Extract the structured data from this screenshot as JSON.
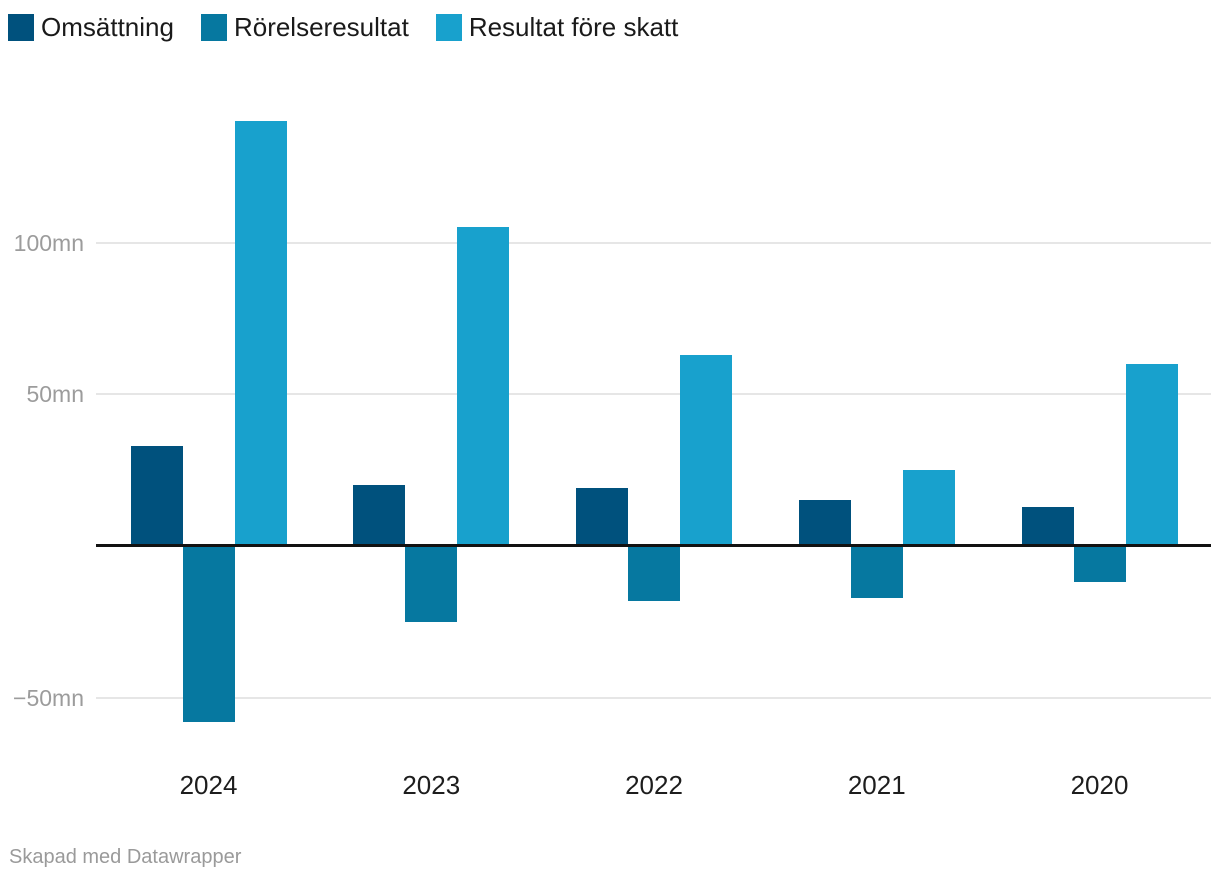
{
  "legend": {
    "items": [
      {
        "label": "Omsättning",
        "color": "#00517d"
      },
      {
        "label": "Rörelseresultat",
        "color": "#0678a0"
      },
      {
        "label": "Resultat före skatt",
        "color": "#18a1cd"
      }
    ]
  },
  "chart_data": {
    "type": "bar",
    "categories": [
      "2024",
      "2023",
      "2022",
      "2021",
      "2020"
    ],
    "series": [
      {
        "name": "Omsättning",
        "color": "#00517d",
        "values": [
          33,
          20,
          19,
          15,
          13
        ]
      },
      {
        "name": "Rörelseresultat",
        "color": "#0678a0",
        "values": [
          -58,
          -25,
          -18,
          -17,
          -12
        ]
      },
      {
        "name": "Resultat före skatt",
        "color": "#18a1cd",
        "values": [
          140,
          105,
          63,
          25,
          60
        ]
      }
    ],
    "unit_suffix": "mn",
    "yticks": [
      {
        "label": "100mn",
        "value": 100
      },
      {
        "label": "50mn",
        "value": 50
      },
      {
        "label": "−50mn",
        "value": -50
      }
    ],
    "baseline_value": 0,
    "ylim": [
      -62,
      145
    ],
    "grid": true,
    "legend_position": "top-left",
    "title": "",
    "xlabel": "",
    "ylabel": ""
  },
  "colors": {
    "gridline": "#e6e6e6",
    "baseline": "#121212",
    "tick_text": "#9c9c9c",
    "axis_text": "#1d1d1d",
    "legend_text": "#1a1a1a",
    "credit_text": "#9a9a9a"
  },
  "footer": {
    "credit": "Skapad med Datawrapper"
  }
}
